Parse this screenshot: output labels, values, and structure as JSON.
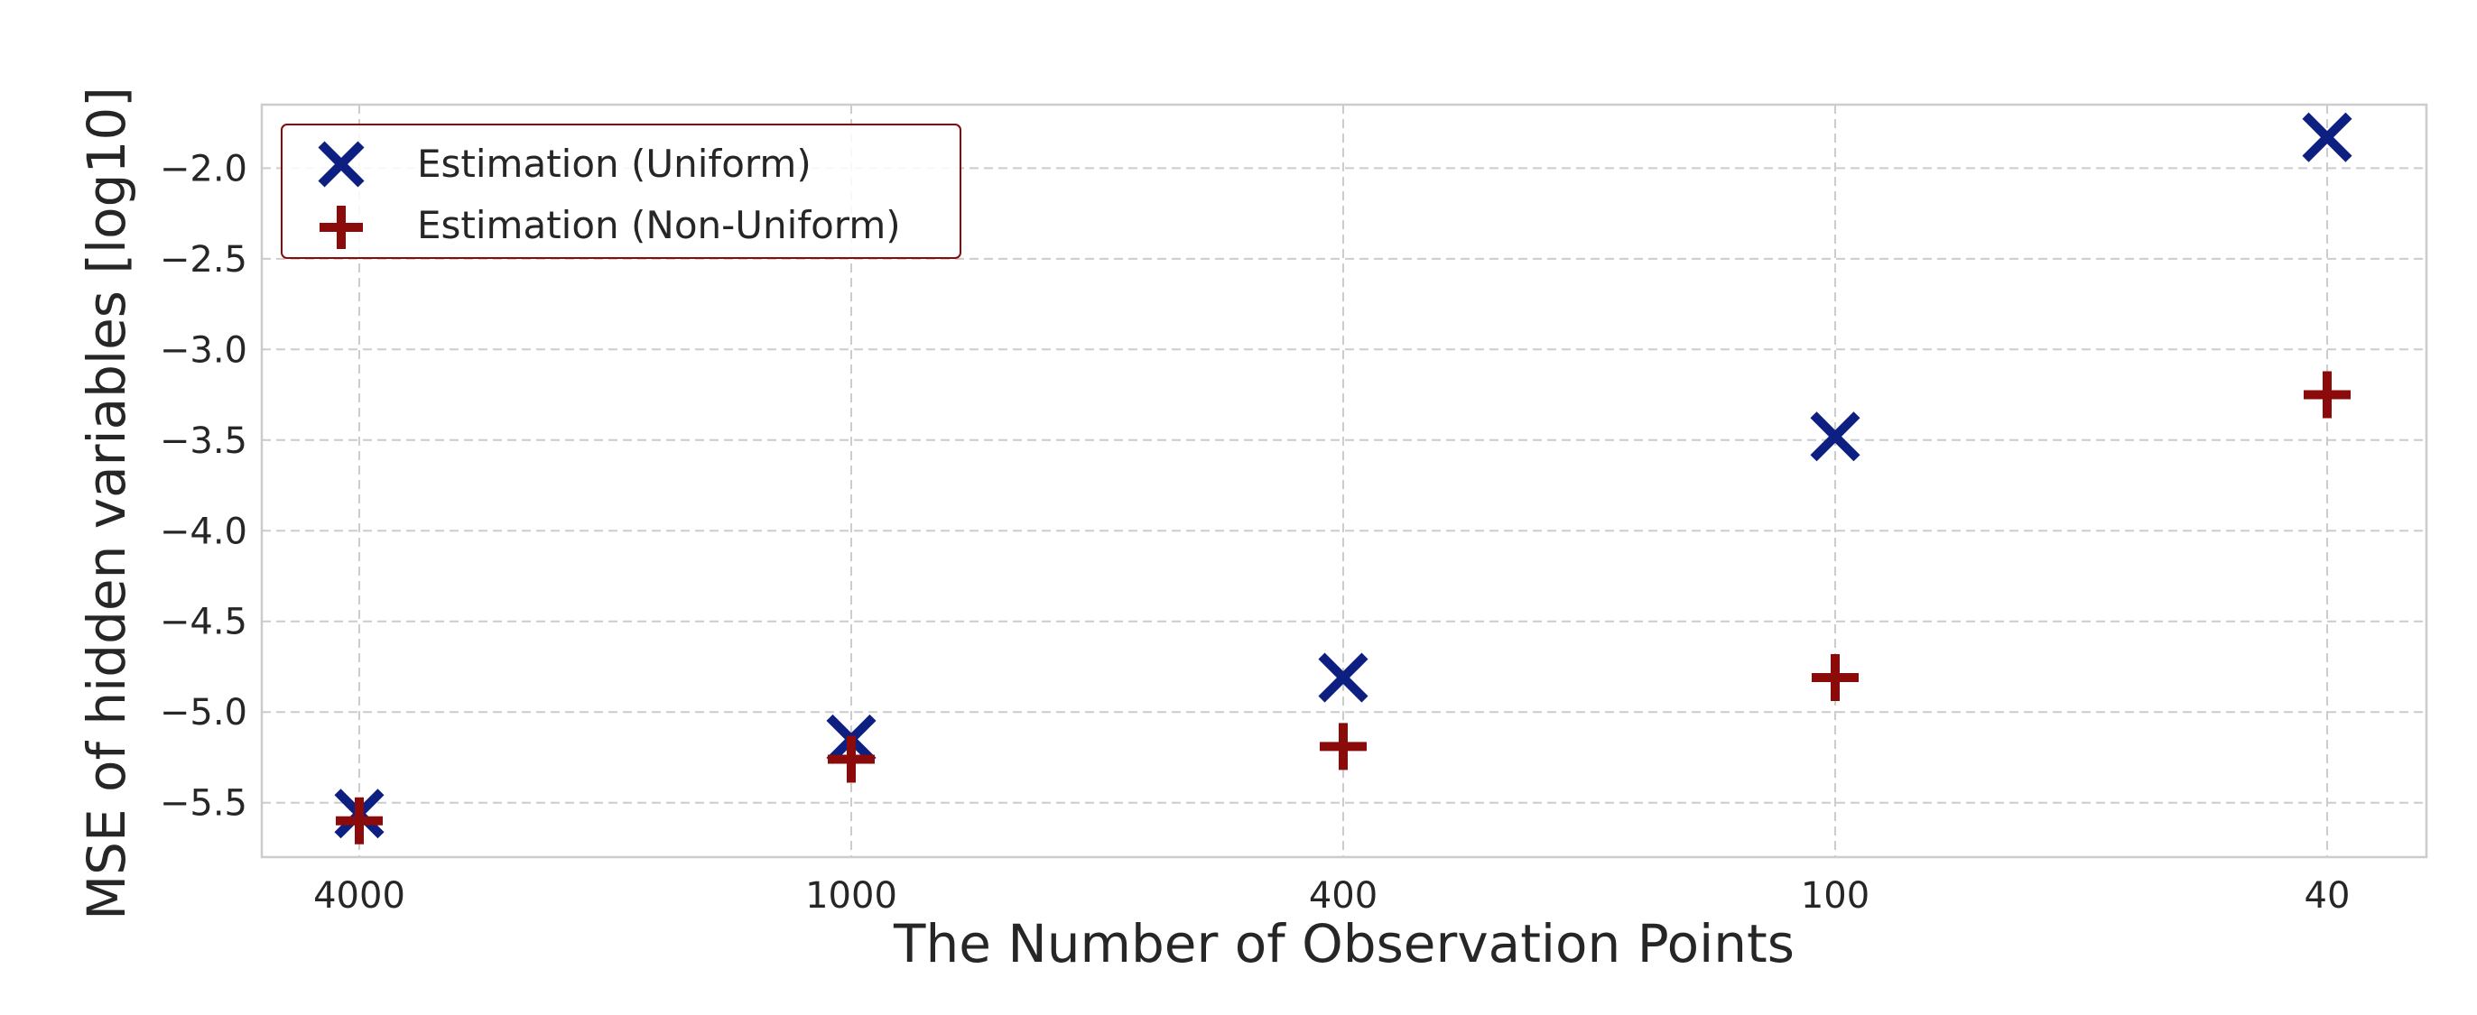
{
  "chart_data": {
    "type": "scatter",
    "title": "",
    "xlabel": "The Number of Observation Points",
    "ylabel": "MSE of hidden variables [log10]",
    "categories": [
      "4000",
      "1000",
      "400",
      "100",
      "40"
    ],
    "yticks": [
      "−5.5",
      "−5.0",
      "−4.5",
      "−4.0",
      "−3.5",
      "−3.0",
      "−2.5",
      "−2.0"
    ],
    "ytick_values": [
      -5.5,
      -5.0,
      -4.5,
      -4.0,
      -3.5,
      -3.0,
      -2.5,
      -2.0
    ],
    "ylim": [
      -5.8,
      -1.65
    ],
    "grid": true,
    "legend_position": "top-left",
    "series": [
      {
        "name": "Estimation (Uniform)",
        "marker": "x",
        "color": "#0d1f80",
        "values": [
          -5.56,
          -5.15,
          -4.81,
          -3.48,
          -1.83
        ]
      },
      {
        "name": "Estimation (Non-Uniform)",
        "marker": "+",
        "color": "#8b0a0a",
        "values": [
          -5.6,
          -5.26,
          -5.19,
          -4.81,
          -3.25
        ]
      }
    ]
  }
}
